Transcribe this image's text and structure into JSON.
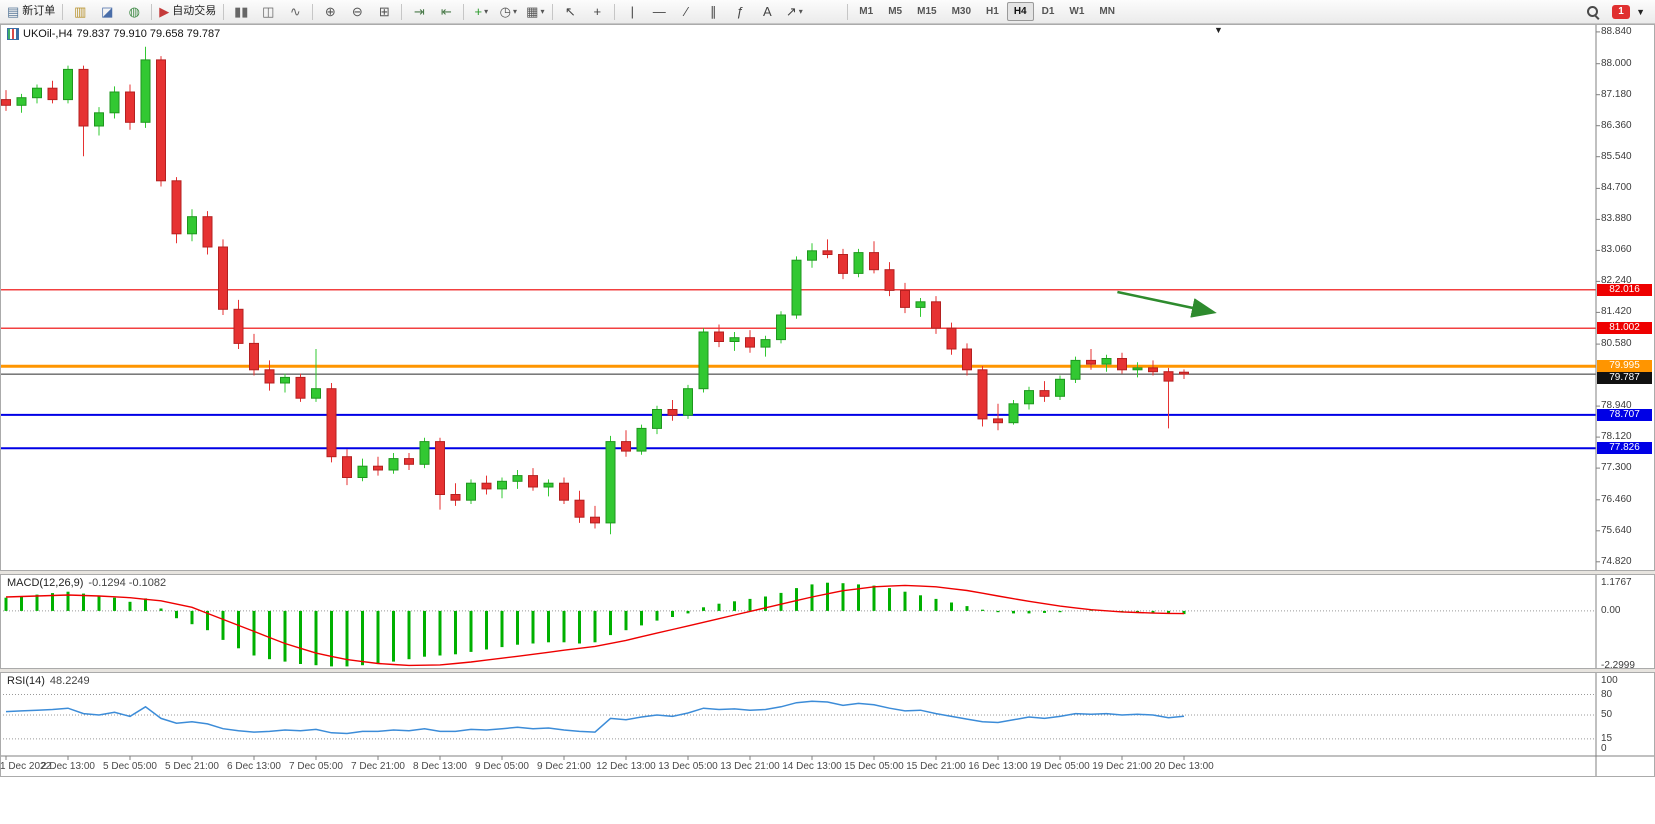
{
  "toolbar": {
    "groups": [
      {
        "items": [
          {
            "name": "new-order",
            "type": "labeled",
            "label": "新订单",
            "glyph": "▤",
            "color": "#5a7a9a"
          }
        ]
      },
      {
        "items": [
          {
            "name": "market-watch",
            "glyph": "▥",
            "color": "#b8922c"
          },
          {
            "name": "navigator",
            "glyph": "◪",
            "color": "#496da8"
          },
          {
            "name": "terminal",
            "glyph": "◍",
            "color": "#3f8a46"
          }
        ]
      },
      {
        "items": [
          {
            "name": "autotrading",
            "type": "labeled",
            "label": "自动交易",
            "glyph": "▶",
            "color": "#c43a3a"
          }
        ]
      },
      {
        "items": [
          {
            "name": "bar-chart",
            "glyph": "▮▮",
            "color": "#666666"
          },
          {
            "name": "candlestick-chart",
            "glyph": "◫",
            "color": "#666666"
          },
          {
            "name": "line-chart",
            "glyph": "∿",
            "color": "#666666"
          }
        ]
      },
      {
        "items": [
          {
            "name": "zoom-in",
            "glyph": "⊕",
            "color": "#555555"
          },
          {
            "name": "zoom-out",
            "glyph": "⊖",
            "color": "#555555"
          },
          {
            "name": "tile-windows",
            "glyph": "⊞",
            "color": "#555555"
          }
        ]
      },
      {
        "items": [
          {
            "name": "auto-scroll",
            "glyph": "⇥",
            "color": "#4a7a4a"
          },
          {
            "name": "chart-shift",
            "glyph": "⇤",
            "color": "#4a7a4a"
          }
        ]
      },
      {
        "items": [
          {
            "name": "indicators",
            "glyph": "+",
            "color": "#2a9a2a",
            "caret": true
          },
          {
            "name": "periods",
            "glyph": "◷",
            "color": "#555555",
            "caret": true
          },
          {
            "name": "templates",
            "glyph": "▦",
            "color": "#555555",
            "caret": true
          }
        ]
      },
      {
        "items": [
          {
            "name": "cursor",
            "glyph": "↖",
            "color": "#444444"
          },
          {
            "name": "crosshair",
            "glyph": "+",
            "color": "#444444"
          }
        ]
      },
      {
        "items": [
          {
            "name": "vertical-line",
            "glyph": "|",
            "color": "#444444"
          },
          {
            "name": "horizontal-line",
            "glyph": "—",
            "color": "#444444"
          },
          {
            "name": "trendline",
            "glyph": "∕",
            "color": "#444444"
          },
          {
            "name": "channel",
            "glyph": "∥",
            "color": "#444444"
          },
          {
            "name": "fibonacci",
            "glyph": "ƒ",
            "color": "#444444"
          },
          {
            "name": "text-label",
            "glyph": "A",
            "color": "#444444"
          },
          {
            "name": "arrows-tool",
            "glyph": "↗",
            "color": "#444444",
            "caret": true
          }
        ]
      }
    ],
    "timeframes": [
      "M1",
      "M5",
      "M15",
      "M30",
      "H1",
      "H4",
      "D1",
      "W1",
      "MN"
    ],
    "active_timeframe": "H4",
    "notification_count": "1"
  },
  "chart": {
    "symbol_period": "UKOil-,H4",
    "ohlc_text": "79.837 79.910 79.658 79.787"
  },
  "chart_data": {
    "type": "candlestick",
    "symbol": "UKOil-",
    "timeframe": "H4",
    "ohlc_readout": {
      "open": "79.837",
      "high": "79.910",
      "low": "79.658",
      "close": "79.787"
    },
    "colors": {
      "up": "#32c832",
      "up_border": "#1e961e",
      "down": "#e63232",
      "down_border": "#b42020",
      "background": "#ffffff",
      "axis_text": "#3c3c3c"
    },
    "ylim": [
      74.55,
      89.05
    ],
    "price_axis_labels": [
      88.84,
      88.0,
      87.18,
      86.36,
      85.54,
      84.7,
      83.88,
      83.06,
      82.24,
      81.42,
      80.58,
      78.94,
      78.12,
      77.3,
      76.46,
      75.64,
      74.82
    ],
    "hlines": [
      {
        "price": 82.016,
        "label": "82.016",
        "color": "#ee0000",
        "w": 1.2
      },
      {
        "price": 81.002,
        "label": "81.002",
        "color": "#ee0000",
        "w": 1.2
      },
      {
        "price": 79.995,
        "label": "79.995",
        "color": "#ff9500",
        "w": 3
      },
      {
        "price": 78.707,
        "label": "78.707",
        "color": "#0000e6",
        "w": 2
      },
      {
        "price": 77.826,
        "label": "77.826",
        "color": "#0000e6",
        "w": 2
      }
    ],
    "current_price": {
      "value": 79.787,
      "label": "79.787",
      "color": "#2b2b2b",
      "badge_bg": "#111111"
    },
    "arrow": {
      "from": {
        "bar": 71.7,
        "price": 81.96
      },
      "to": {
        "bar": 77.8,
        "price": 81.43
      },
      "color": "#2e8b2e"
    },
    "x_labels": [
      {
        "i": 0,
        "t": "1 Dec 2022"
      },
      {
        "i": 4,
        "t": "2 Dec 13:00"
      },
      {
        "i": 8,
        "t": "5 Dec 05:00"
      },
      {
        "i": 12,
        "t": "5 Dec 21:00"
      },
      {
        "i": 16,
        "t": "6 Dec 13:00"
      },
      {
        "i": 20,
        "t": "7 Dec 05:00"
      },
      {
        "i": 24,
        "t": "7 Dec 21:00"
      },
      {
        "i": 28,
        "t": "8 Dec 13:00"
      },
      {
        "i": 32,
        "t": "9 Dec 05:00"
      },
      {
        "i": 36,
        "t": "9 Dec 21:00"
      },
      {
        "i": 40,
        "t": "12 Dec 13:00"
      },
      {
        "i": 44,
        "t": "13 Dec 05:00"
      },
      {
        "i": 48,
        "t": "13 Dec 21:00"
      },
      {
        "i": 52,
        "t": "14 Dec 13:00"
      },
      {
        "i": 56,
        "t": "15 Dec 05:00"
      },
      {
        "i": 60,
        "t": "15 Dec 21:00"
      },
      {
        "i": 64,
        "t": "16 Dec 13:00"
      },
      {
        "i": 68,
        "t": "19 Dec 05:00"
      },
      {
        "i": 72,
        "t": "19 Dec 21:00"
      },
      {
        "i": 76,
        "t": "20 Dec 13:00"
      }
    ],
    "candles": [
      [
        87.05,
        87.3,
        86.75,
        86.9
      ],
      [
        86.9,
        87.2,
        86.7,
        87.1
      ],
      [
        87.1,
        87.45,
        86.95,
        87.35
      ],
      [
        87.35,
        87.55,
        86.95,
        87.05
      ],
      [
        87.05,
        87.95,
        86.95,
        87.85
      ],
      [
        87.85,
        87.95,
        85.55,
        86.35
      ],
      [
        86.35,
        86.85,
        86.1,
        86.7
      ],
      [
        86.7,
        87.4,
        86.55,
        87.25
      ],
      [
        87.25,
        87.45,
        86.25,
        86.45
      ],
      [
        86.45,
        88.45,
        86.3,
        88.1
      ],
      [
        88.1,
        88.2,
        84.75,
        84.9
      ],
      [
        84.9,
        85.0,
        83.25,
        83.5
      ],
      [
        83.5,
        84.15,
        83.3,
        83.95
      ],
      [
        83.95,
        84.1,
        82.95,
        83.15
      ],
      [
        83.15,
        83.35,
        81.35,
        81.5
      ],
      [
        81.5,
        81.75,
        80.45,
        80.6
      ],
      [
        80.6,
        80.85,
        79.75,
        79.9
      ],
      [
        79.9,
        80.15,
        79.35,
        79.55
      ],
      [
        79.55,
        79.8,
        79.3,
        79.7
      ],
      [
        79.7,
        79.8,
        79.05,
        79.15
      ],
      [
        79.15,
        80.45,
        79.05,
        79.4
      ],
      [
        79.4,
        79.55,
        77.45,
        77.6
      ],
      [
        77.6,
        77.8,
        76.85,
        77.05
      ],
      [
        77.05,
        77.55,
        76.95,
        77.35
      ],
      [
        77.35,
        77.6,
        77.1,
        77.25
      ],
      [
        77.25,
        77.7,
        77.15,
        77.55
      ],
      [
        77.55,
        77.7,
        77.25,
        77.4
      ],
      [
        77.4,
        78.1,
        77.3,
        78.0
      ],
      [
        78.0,
        78.1,
        76.2,
        76.6
      ],
      [
        76.6,
        76.9,
        76.3,
        76.45
      ],
      [
        76.45,
        77.0,
        76.35,
        76.9
      ],
      [
        76.9,
        77.1,
        76.6,
        76.75
      ],
      [
        76.75,
        77.05,
        76.5,
        76.95
      ],
      [
        76.95,
        77.25,
        76.75,
        77.1
      ],
      [
        77.1,
        77.3,
        76.7,
        76.8
      ],
      [
        76.8,
        77.0,
        76.55,
        76.9
      ],
      [
        76.9,
        77.05,
        76.35,
        76.45
      ],
      [
        76.45,
        76.7,
        75.85,
        76.0
      ],
      [
        76.0,
        76.3,
        75.7,
        75.85
      ],
      [
        75.85,
        78.15,
        75.55,
        78.0
      ],
      [
        78.0,
        78.3,
        77.6,
        77.75
      ],
      [
        77.75,
        78.45,
        77.65,
        78.35
      ],
      [
        78.35,
        78.95,
        78.2,
        78.85
      ],
      [
        78.85,
        79.1,
        78.55,
        78.7
      ],
      [
        78.7,
        79.5,
        78.6,
        79.4
      ],
      [
        79.4,
        81.0,
        79.3,
        80.9
      ],
      [
        80.9,
        81.1,
        80.5,
        80.65
      ],
      [
        80.65,
        80.9,
        80.4,
        80.75
      ],
      [
        80.75,
        80.95,
        80.35,
        80.5
      ],
      [
        80.5,
        80.8,
        80.25,
        80.7
      ],
      [
        80.7,
        81.45,
        80.6,
        81.35
      ],
      [
        81.35,
        82.9,
        81.25,
        82.8
      ],
      [
        82.8,
        83.25,
        82.6,
        83.05
      ],
      [
        83.05,
        83.35,
        82.85,
        82.95
      ],
      [
        82.95,
        83.1,
        82.3,
        82.45
      ],
      [
        82.45,
        83.1,
        82.35,
        83.0
      ],
      [
        83.0,
        83.3,
        82.45,
        82.55
      ],
      [
        82.55,
        82.75,
        81.85,
        82.0
      ],
      [
        82.0,
        82.2,
        81.4,
        81.55
      ],
      [
        81.55,
        81.8,
        81.3,
        81.7
      ],
      [
        81.7,
        81.85,
        80.85,
        81.0
      ],
      [
        81.0,
        81.15,
        80.3,
        80.45
      ],
      [
        80.45,
        80.6,
        79.75,
        79.9
      ],
      [
        79.9,
        80.0,
        78.4,
        78.6
      ],
      [
        78.6,
        79.0,
        78.3,
        78.5
      ],
      [
        78.5,
        79.1,
        78.45,
        79.0
      ],
      [
        79.0,
        79.45,
        78.85,
        79.35
      ],
      [
        79.35,
        79.6,
        79.05,
        79.2
      ],
      [
        79.2,
        79.75,
        79.1,
        79.65
      ],
      [
        79.65,
        80.25,
        79.55,
        80.15
      ],
      [
        80.15,
        80.45,
        79.9,
        80.05
      ],
      [
        80.05,
        80.3,
        79.85,
        80.2
      ],
      [
        80.2,
        80.35,
        79.8,
        79.9
      ],
      [
        79.9,
        80.1,
        79.7,
        79.95
      ],
      [
        79.95,
        80.15,
        79.75,
        79.85
      ],
      [
        79.85,
        79.95,
        78.35,
        79.6
      ],
      [
        79.837,
        79.91,
        79.658,
        79.787
      ]
    ],
    "macd": {
      "label": "MACD(12,26,9)",
      "values_text": "-0.1294 -0.1082",
      "hist_color": "#00b000",
      "signal_color": "#ee0000",
      "axis_labels": [
        {
          "v": 1.1767,
          "t": "1.1767"
        },
        {
          "v": 0,
          "t": "0.00"
        },
        {
          "v": -2.2999,
          "t": "-2.2999"
        }
      ],
      "ylim": [
        -2.45,
        1.45
      ],
      "histogram": [
        0.55,
        0.62,
        0.68,
        0.74,
        0.8,
        0.72,
        0.6,
        0.55,
        0.38,
        0.52,
        0.1,
        -0.3,
        -0.55,
        -0.8,
        -1.2,
        -1.55,
        -1.85,
        -2.0,
        -2.1,
        -2.2,
        -2.25,
        -2.3,
        -2.3,
        -2.25,
        -2.2,
        -2.1,
        -2.0,
        -1.9,
        -1.85,
        -1.8,
        -1.7,
        -1.6,
        -1.5,
        -1.4,
        -1.35,
        -1.3,
        -1.3,
        -1.35,
        -1.3,
        -1.0,
        -0.8,
        -0.6,
        -0.4,
        -0.25,
        -0.1,
        0.15,
        0.3,
        0.4,
        0.5,
        0.6,
        0.75,
        0.95,
        1.1,
        1.17,
        1.15,
        1.1,
        1.05,
        0.95,
        0.8,
        0.65,
        0.5,
        0.35,
        0.2,
        0.05,
        -0.05,
        -0.1,
        -0.1,
        -0.08,
        -0.05,
        0.0,
        0.02,
        0.0,
        -0.05,
        -0.08,
        -0.1,
        -0.12,
        -0.1294
      ],
      "signal": [
        0.58,
        0.6,
        0.62,
        0.64,
        0.66,
        0.64,
        0.62,
        0.585,
        0.55,
        0.485,
        0.42,
        0.285,
        0.15,
        -0.1,
        -0.35,
        -0.6,
        -0.85,
        -1.1,
        -1.35,
        -1.55,
        -1.75,
        -1.885,
        -2.02,
        -2.1,
        -2.18,
        -2.22,
        -2.26,
        -2.25,
        -2.24,
        -2.18,
        -2.12,
        -2.04,
        -1.96,
        -1.88,
        -1.8,
        -1.715,
        -1.63,
        -1.55,
        -1.47,
        -1.345,
        -1.22,
        -1.07,
        -0.92,
        -0.77,
        -0.62,
        -0.47,
        -0.32,
        -0.17,
        -0.02,
        0.13,
        0.28,
        0.43,
        0.58,
        0.71,
        0.84,
        0.92,
        1.0,
        1.03,
        1.06,
        1.03,
        1.0,
        0.925,
        0.85,
        0.735,
        0.62,
        0.51,
        0.4,
        0.3,
        0.2,
        0.125,
        0.05,
        0.005,
        -0.04,
        -0.065,
        -0.09,
        -0.1,
        -0.1082
      ]
    },
    "rsi": {
      "label": "RSI(14)",
      "value_text": "48.2249",
      "color": "#3c8cd8",
      "levels": [
        80,
        50,
        15
      ],
      "axis_labels": [
        {
          "v": 100,
          "t": "100"
        },
        {
          "v": 80,
          "t": "80"
        },
        {
          "v": 50,
          "t": "50"
        },
        {
          "v": 15,
          "t": "15"
        },
        {
          "v": 0,
          "t": "0"
        }
      ],
      "ylim": [
        0,
        100
      ],
      "values": [
        55,
        56,
        57,
        58,
        60,
        52,
        50,
        54,
        48,
        62,
        45,
        38,
        40,
        37,
        30,
        27,
        25,
        26,
        28,
        27,
        29,
        24,
        23,
        26,
        26,
        28,
        27,
        30,
        26,
        26,
        29,
        28,
        30,
        32,
        30,
        31,
        28,
        26,
        25,
        45,
        43,
        47,
        50,
        48,
        53,
        60,
        58,
        59,
        57,
        58,
        62,
        68,
        70,
        69,
        64,
        67,
        65,
        60,
        56,
        57,
        52,
        48,
        44,
        40,
        39,
        43,
        47,
        45,
        48,
        52,
        51,
        52,
        50,
        51,
        50,
        46,
        48.22
      ]
    }
  }
}
